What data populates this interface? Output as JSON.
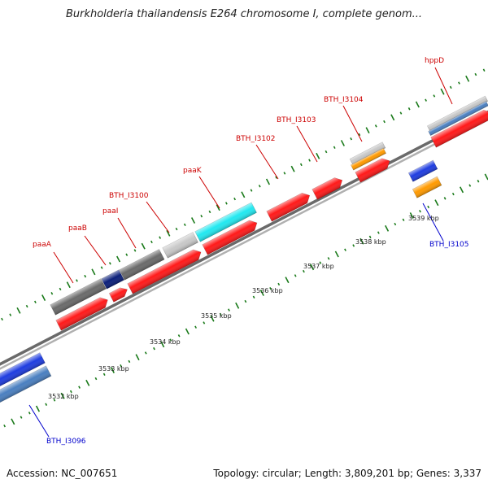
{
  "title": "Burkholderia thailandensis E264 chromosome I, complete genom...",
  "accession": "Accession: NC_007651",
  "summary": "Topology: circular; Length: 3,809,201 bp; Genes: 3,337",
  "colors": {
    "backbone": "#888888",
    "tick": "#1a7a1a",
    "red_gene": "#ff1a1a",
    "blue_gene": "#1f3de0",
    "steelblue_gene": "#4a7fc0",
    "orange_gene": "#ff9a00",
    "cyan_gene": "#22e8f0",
    "gray_gene": "#6a6a6a",
    "lightgray_gene": "#c8c8c8",
    "navy_gene": "#0b1f7a",
    "label_red": "#cc0000",
    "label_blue": "#0000cc"
  },
  "scale_labels": [
    "3532 kbp",
    "3533 kbp",
    "3534 kbp",
    "3535 kbp",
    "3536 kbp",
    "3537 kbp",
    "3538 kbp",
    "3539 kbp"
  ],
  "gene_labels": [
    {
      "text": "paaA",
      "color": "red"
    },
    {
      "text": "paaB",
      "color": "red"
    },
    {
      "text": "paaI",
      "color": "red"
    },
    {
      "text": "BTH_I3100",
      "color": "red"
    },
    {
      "text": "paaK",
      "color": "red"
    },
    {
      "text": "BTH_I3102",
      "color": "red"
    },
    {
      "text": "BTH_I3103",
      "color": "red"
    },
    {
      "text": "BTH_I3104",
      "color": "red"
    },
    {
      "text": "hppD",
      "color": "red"
    },
    {
      "text": "BTH_I3105",
      "color": "blue"
    },
    {
      "text": "BTH_I3096",
      "color": "blue"
    }
  ]
}
